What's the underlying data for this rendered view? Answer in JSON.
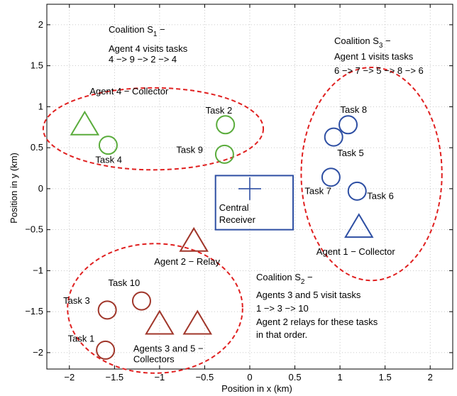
{
  "chart_data": {
    "type": "scatter",
    "xlabel": "Position in x (km)",
    "ylabel": "Position in y (km)",
    "xlim": [
      -2.25,
      2.25
    ],
    "ylim": [
      -2.2,
      2.25
    ],
    "xticks": [
      -2,
      -1.5,
      -1,
      -0.5,
      0,
      0.5,
      1,
      1.5,
      2
    ],
    "xtick_labels": [
      "−2",
      "−1.5",
      "−1",
      "−0.5",
      "0",
      "0.5",
      "1",
      "1.5",
      "2"
    ],
    "yticks": [
      -2,
      -1.5,
      -1,
      -0.5,
      0,
      0.5,
      1,
      1.5,
      2
    ],
    "ytick_labels": [
      "−2",
      "−1.5",
      "−1",
      "−0.5",
      "0",
      "0.5",
      "1",
      "1.5",
      "2"
    ],
    "grid": true,
    "colors": {
      "green": "#5aac3c",
      "blue": "#2e4fa3",
      "brown": "#a0362a",
      "coalition": "#e02020"
    },
    "tasks": [
      {
        "label": "Task 2",
        "x": -0.27,
        "y": 0.78,
        "color": "green"
      },
      {
        "label": "Task 9",
        "x": -0.28,
        "y": 0.42,
        "color": "green"
      },
      {
        "label": "Task 4",
        "x": -1.57,
        "y": 0.53,
        "color": "green"
      },
      {
        "label": "Task 8",
        "x": 1.09,
        "y": 0.78,
        "color": "blue"
      },
      {
        "label": "Task 5",
        "x": 0.93,
        "y": 0.63,
        "color": "blue"
      },
      {
        "label": "Task 7",
        "x": 0.9,
        "y": 0.14,
        "color": "blue"
      },
      {
        "label": "Task 6",
        "x": 1.19,
        "y": -0.03,
        "color": "blue"
      },
      {
        "label": "Task 10",
        "x": -1.2,
        "y": -1.37,
        "color": "brown"
      },
      {
        "label": "Task 3",
        "x": -1.58,
        "y": -1.48,
        "color": "brown"
      },
      {
        "label": "Task 1",
        "x": -1.6,
        "y": -1.97,
        "color": "brown"
      }
    ],
    "agents": [
      {
        "label": "Agent 4 − Collector",
        "x": -1.83,
        "y": 0.78,
        "color": "green"
      },
      {
        "label": "Agent 1 − Collector",
        "x": 1.21,
        "y": -0.47,
        "color": "blue"
      },
      {
        "label": "Agent 2 − Relay",
        "x": -0.62,
        "y": -0.64,
        "color": "brown"
      },
      {
        "label": "Agents 3 and 5 −",
        "label2": "Collectors",
        "x": -1.0,
        "y": -1.65,
        "color": "brown"
      },
      {
        "label": "",
        "x": -0.58,
        "y": -1.65,
        "color": "brown"
      }
    ],
    "receiver": {
      "label": "Central",
      "label2": "Receiver",
      "x": 0,
      "y": 0,
      "box": [
        -0.38,
        -0.5,
        0.48,
        0.16
      ],
      "color": "blue"
    },
    "coalitions": [
      {
        "name": "S1",
        "cx": -1.07,
        "cy": 0.73,
        "rx": 1.22,
        "ry": 0.5
      },
      {
        "name": "S3",
        "cx": 1.35,
        "cy": 0.18,
        "rx": 0.78,
        "ry": 1.3
      },
      {
        "name": "S2",
        "cx": -1.05,
        "cy": -1.46,
        "rx": 0.97,
        "ry": 0.79
      }
    ],
    "annotations": {
      "c1_title": "Coalition S",
      "c1_sub": "1",
      "c1_dash": " −",
      "c1_line2": "Agent 4 visits tasks",
      "c1_line3": "4 −> 9 −> 2 −> 4",
      "c3_title": "Coalition S",
      "c3_sub": "3",
      "c3_dash": " −",
      "c3_line2": "Agent 1 visits tasks",
      "c3_line3": "6 −> 7 −> 5 −> 8 −> 6",
      "c2_title": "Coalition S",
      "c2_sub": "2",
      "c2_dash": " −",
      "c2_line2": "Agents 3 and 5 visit tasks",
      "c2_line3": "1 −> 3 −> 10",
      "c2_line4": "Agent 2 relays for these tasks",
      "c2_line5": "in that order."
    }
  }
}
